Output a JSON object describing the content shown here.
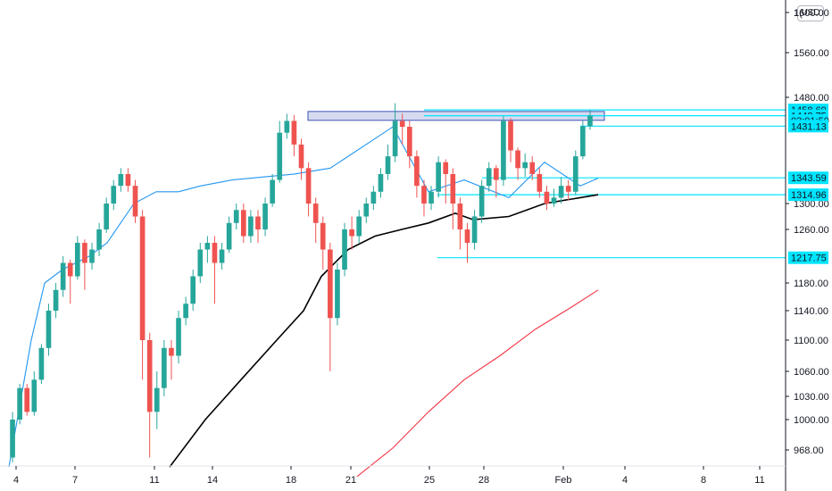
{
  "price_axis": {
    "currency": "USD",
    "ticks": [
      "1600.00",
      "1560.00",
      "1480.00",
      "1300.00",
      "1260.00",
      "1180.00",
      "1140.00",
      "1100.00",
      "1060.00",
      "1030.00",
      "1000.00",
      "968.00"
    ],
    "tick_values": [
      1600,
      1560,
      1480,
      1300,
      1260,
      1180,
      1140,
      1100,
      1060,
      1030,
      1000,
      968
    ],
    "top_tick_partial": "1("
  },
  "time_axis": {
    "labels": [
      "4",
      "7",
      "11",
      "14",
      "18",
      "21",
      "25",
      "28",
      "Feb",
      "4",
      "8",
      "11"
    ]
  },
  "price_tags": [
    {
      "label": "1458.69",
      "value": 1458.69
    },
    {
      "label": "1448.75",
      "value": 1448.75
    },
    {
      "label": "03:01:50",
      "value": 1440.5,
      "countdown": true
    },
    {
      "label": "1431.13",
      "value": 1431.13
    },
    {
      "label": "1343.59",
      "value": 1343.59
    },
    {
      "label": "1314.96",
      "value": 1314.96
    },
    {
      "label": "1217.75",
      "value": 1217.75
    }
  ],
  "colors": {
    "up": "#26a69a",
    "down": "#ef5350",
    "level": "#00e5ff",
    "tag": "#00e5ff",
    "ma_fast": "#2196f3",
    "ma_mid": "#000000",
    "ma_slow": "#f23645",
    "zone_fill": "#c5cae9",
    "zone_stroke": "#3f51b5"
  },
  "chart_data": {
    "type": "candlestick",
    "instrument_currency": "USD",
    "ylim": [
      940,
      1620
    ],
    "resistance_zone": [
      1441,
      1456
    ],
    "horizontal_levels": [
      1458.69,
      1448.75,
      1431.13,
      1343.59,
      1314.96,
      1217.75
    ],
    "last_price": 1448.75,
    "candles_ohlc_approx": [
      [
        960,
        1000,
        955,
        1010
      ],
      [
        1000,
        1040,
        995,
        1045
      ],
      [
        1040,
        1010,
        1005,
        1045
      ],
      [
        1010,
        1050,
        1005,
        1060
      ],
      [
        1050,
        1090,
        1045,
        1095
      ],
      [
        1090,
        1140,
        1080,
        1150
      ],
      [
        1140,
        1170,
        1130,
        1180
      ],
      [
        1170,
        1210,
        1160,
        1220
      ],
      [
        1210,
        1190,
        1150,
        1215
      ],
      [
        1190,
        1240,
        1185,
        1250
      ],
      [
        1240,
        1210,
        1170,
        1245
      ],
      [
        1210,
        1230,
        1200,
        1240
      ],
      [
        1230,
        1260,
        1220,
        1270
      ],
      [
        1260,
        1300,
        1255,
        1310
      ],
      [
        1300,
        1330,
        1290,
        1340
      ],
      [
        1330,
        1350,
        1320,
        1360
      ],
      [
        1350,
        1330,
        1320,
        1360
      ],
      [
        1330,
        1280,
        1270,
        1340
      ],
      [
        1280,
        1100,
        1050,
        1290
      ],
      [
        1100,
        1010,
        960,
        1110
      ],
      [
        1010,
        1040,
        990,
        1060
      ],
      [
        1040,
        1090,
        1030,
        1100
      ],
      [
        1090,
        1080,
        1050,
        1100
      ],
      [
        1080,
        1130,
        1070,
        1140
      ],
      [
        1130,
        1150,
        1120,
        1160
      ],
      [
        1150,
        1190,
        1140,
        1200
      ],
      [
        1190,
        1230,
        1180,
        1240
      ],
      [
        1230,
        1240,
        1210,
        1250
      ],
      [
        1240,
        1210,
        1150,
        1250
      ],
      [
        1210,
        1230,
        1200,
        1240
      ],
      [
        1230,
        1270,
        1225,
        1280
      ],
      [
        1270,
        1290,
        1260,
        1300
      ],
      [
        1290,
        1250,
        1240,
        1300
      ],
      [
        1250,
        1280,
        1240,
        1290
      ],
      [
        1280,
        1260,
        1240,
        1290
      ],
      [
        1260,
        1300,
        1250,
        1310
      ],
      [
        1300,
        1340,
        1295,
        1350
      ],
      [
        1340,
        1420,
        1335,
        1440
      ],
      [
        1420,
        1440,
        1410,
        1452
      ],
      [
        1440,
        1400,
        1380,
        1450
      ],
      [
        1400,
        1360,
        1340,
        1410
      ],
      [
        1360,
        1300,
        1280,
        1370
      ],
      [
        1300,
        1270,
        1240,
        1310
      ],
      [
        1270,
        1230,
        1200,
        1280
      ],
      [
        1230,
        1130,
        1060,
        1240
      ],
      [
        1130,
        1200,
        1120,
        1210
      ],
      [
        1200,
        1260,
        1190,
        1270
      ],
      [
        1260,
        1250,
        1230,
        1280
      ],
      [
        1250,
        1280,
        1240,
        1290
      ],
      [
        1280,
        1300,
        1270,
        1310
      ],
      [
        1300,
        1320,
        1290,
        1330
      ],
      [
        1320,
        1350,
        1310,
        1360
      ],
      [
        1350,
        1380,
        1340,
        1400
      ],
      [
        1380,
        1440,
        1370,
        1470
      ],
      [
        1440,
        1430,
        1400,
        1452
      ],
      [
        1430,
        1380,
        1360,
        1440
      ],
      [
        1380,
        1330,
        1310,
        1390
      ],
      [
        1330,
        1300,
        1280,
        1340
      ],
      [
        1300,
        1320,
        1290,
        1330
      ],
      [
        1320,
        1370,
        1310,
        1380
      ],
      [
        1370,
        1350,
        1300,
        1375
      ],
      [
        1350,
        1300,
        1260,
        1360
      ],
      [
        1300,
        1260,
        1230,
        1310
      ],
      [
        1260,
        1240,
        1210,
        1270
      ],
      [
        1240,
        1280,
        1230,
        1290
      ],
      [
        1280,
        1330,
        1270,
        1340
      ],
      [
        1330,
        1360,
        1320,
        1370
      ],
      [
        1360,
        1340,
        1310,
        1365
      ],
      [
        1340,
        1440,
        1330,
        1448
      ],
      [
        1440,
        1390,
        1370,
        1445
      ],
      [
        1390,
        1360,
        1340,
        1395
      ],
      [
        1360,
        1370,
        1345,
        1385
      ],
      [
        1370,
        1350,
        1340,
        1380
      ],
      [
        1350,
        1320,
        1310,
        1360
      ],
      [
        1320,
        1300,
        1290,
        1330
      ],
      [
        1300,
        1310,
        1295,
        1325
      ],
      [
        1310,
        1330,
        1300,
        1345
      ],
      [
        1330,
        1320,
        1305,
        1340
      ],
      [
        1320,
        1380,
        1315,
        1390
      ],
      [
        1380,
        1431,
        1375,
        1440
      ],
      [
        1431,
        1449,
        1425,
        1459
      ]
    ],
    "moving_averages": [
      {
        "points": [
          [
            0,
            950
          ],
          [
            25,
            1100
          ],
          [
            40,
            1180
          ],
          [
            60,
            1200
          ],
          [
            90,
            1220
          ],
          [
            110,
            1240
          ],
          [
            140,
            1300
          ],
          [
            165,
            1320
          ],
          [
            190,
            1320
          ],
          [
            215,
            1330
          ],
          [
            250,
            1340
          ],
          [
            320,
            1350
          ],
          [
            360,
            1360
          ],
          [
            400,
            1400
          ],
          [
            430,
            1430
          ],
          [
            470,
            1320
          ],
          [
            510,
            1340
          ],
          [
            560,
            1310
          ],
          [
            600,
            1370
          ],
          [
            640,
            1330
          ],
          [
            660,
            1343
          ]
        ]
      },
      {
        "points": [
          [
            180,
            950
          ],
          [
            220,
            1000
          ],
          [
            260,
            1050
          ],
          [
            300,
            1100
          ],
          [
            330,
            1140
          ],
          [
            350,
            1190
          ],
          [
            380,
            1230
          ],
          [
            410,
            1250
          ],
          [
            440,
            1260
          ],
          [
            470,
            1270
          ],
          [
            500,
            1285
          ],
          [
            520,
            1275
          ],
          [
            560,
            1280
          ],
          [
            600,
            1300
          ],
          [
            640,
            1310
          ],
          [
            660,
            1315
          ]
        ]
      },
      {
        "points": [
          [
            390,
            940
          ],
          [
            430,
            970
          ],
          [
            470,
            1010
          ],
          [
            510,
            1050
          ],
          [
            550,
            1080
          ],
          [
            590,
            1115
          ],
          [
            630,
            1145
          ],
          [
            660,
            1170
          ]
        ]
      }
    ]
  }
}
